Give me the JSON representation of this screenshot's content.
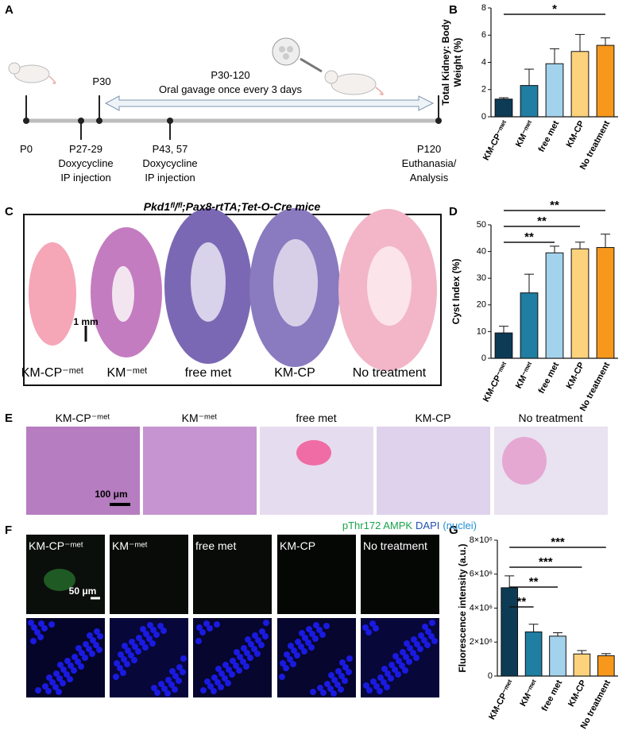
{
  "panel_labels": [
    "A",
    "B",
    "C",
    "D",
    "E",
    "F",
    "G"
  ],
  "timeline": {
    "p0": "P0",
    "p27": "P27-29",
    "dox1": "Doxycycline",
    "ip1": "IP injection",
    "p30": "P30",
    "p30_120": "P30-120",
    "gavage": "Oral gavage once every 3 days",
    "p43": "P43, 57",
    "dox2": "Doxycycline",
    "ip2": "IP injection",
    "p120": "P120",
    "euth": "Euthanasia/",
    "analysis": "Analysis"
  },
  "panel_c": {
    "title": "Pkd1ᶠˡ/ᶠˡ;Pax8-rtTA;Tet-O-Cre mice",
    "scale": "1 mm",
    "labels": [
      "KM-CP⁻ᵐᵉᵗ",
      "KM⁻ᵐᵉᵗ",
      "free met",
      "KM-CP",
      "No treatment"
    ]
  },
  "panel_e": {
    "scale": "100 μm",
    "labels": [
      "KM-CP⁻ᵐᵉᵗ",
      "KM⁻ᵐᵉᵗ",
      "free met",
      "KM-CP",
      "No treatment"
    ]
  },
  "panel_f": {
    "stain1": "pThr172 AMPK",
    "stain2": "DAPI",
    "stain3": "(nuclei)",
    "scale": "50 μm",
    "labels": [
      "KM-CP⁻ᵐᵉᵗ",
      "KM⁻ᵐᵉᵗ",
      "free met",
      "KM-CP",
      "No treatment"
    ]
  },
  "chart_data": [
    {
      "type": "bar",
      "ylabel": [
        "Total Kidney: Body",
        "Weight (%)"
      ],
      "categories": [
        "KM-CP⁻ᵐᵉᵗ",
        "KM⁻ᵐᵉᵗ",
        "free met",
        "KM-CP",
        "No treatment"
      ],
      "values": [
        1.3,
        2.3,
        3.9,
        4.8,
        5.25
      ],
      "errors": [
        0.1,
        1.2,
        1.1,
        1.25,
        0.55
      ],
      "colors": [
        "#0d3b56",
        "#1f7ea1",
        "#a3d2ec",
        "#fdd27c",
        "#f7981c"
      ],
      "ylim": [
        0,
        8
      ],
      "yticks": [
        0,
        2,
        4,
        6,
        8
      ],
      "annotations": [
        {
          "text": "*",
          "from": 0,
          "to": 4
        }
      ]
    },
    {
      "type": "bar",
      "ylabel": [
        "Cyst Index (%)"
      ],
      "categories": [
        "KM-CP⁻ᵐᵉᵗ",
        "KM⁻ᵐᵉᵗ",
        "free met",
        "KM-CP",
        "No treatment"
      ],
      "values": [
        9.5,
        24.5,
        39.5,
        41,
        41.5
      ],
      "errors": [
        2.5,
        7,
        2.5,
        2.5,
        5
      ],
      "colors": [
        "#0d3b56",
        "#1f7ea1",
        "#a3d2ec",
        "#fdd27c",
        "#f7981c"
      ],
      "ylim": [
        0,
        50
      ],
      "yticks": [
        0,
        10,
        20,
        30,
        40,
        50
      ],
      "annotations": [
        {
          "text": "**",
          "from": 0,
          "to": 2
        },
        {
          "text": "**",
          "from": 0,
          "to": 3
        },
        {
          "text": "**",
          "from": 0,
          "to": 4
        }
      ]
    },
    {
      "type": "bar",
      "ylabel": [
        "Fluorescence intensity (a.u.)"
      ],
      "categories": [
        "KM-CP⁻ᵐᵉᵗ",
        "KM⁻ᵐᵉᵗ",
        "free met",
        "KM-CP",
        "No treatment"
      ],
      "values": [
        5200000,
        2600000,
        2350000,
        1300000,
        1200000
      ],
      "errors": [
        700000,
        450000,
        200000,
        200000,
        120000
      ],
      "colors": [
        "#0d3b56",
        "#1f7ea1",
        "#a3d2ec",
        "#fdd27c",
        "#f7981c"
      ],
      "ylim": [
        0,
        8000000
      ],
      "yticks": [
        0,
        {
          "value": 2000000,
          "label": "2×10⁶"
        },
        {
          "value": 4000000,
          "label": "4×10⁶"
        },
        {
          "value": 6000000,
          "label": "6×10⁶"
        },
        {
          "value": 8000000,
          "label": "8×10⁶"
        }
      ],
      "annotations": [
        {
          "text": "**",
          "from": 0,
          "to": 1
        },
        {
          "text": "**",
          "from": 0,
          "to": 2
        },
        {
          "text": "***",
          "from": 0,
          "to": 3
        },
        {
          "text": "***",
          "from": 0,
          "to": 4
        }
      ]
    }
  ]
}
